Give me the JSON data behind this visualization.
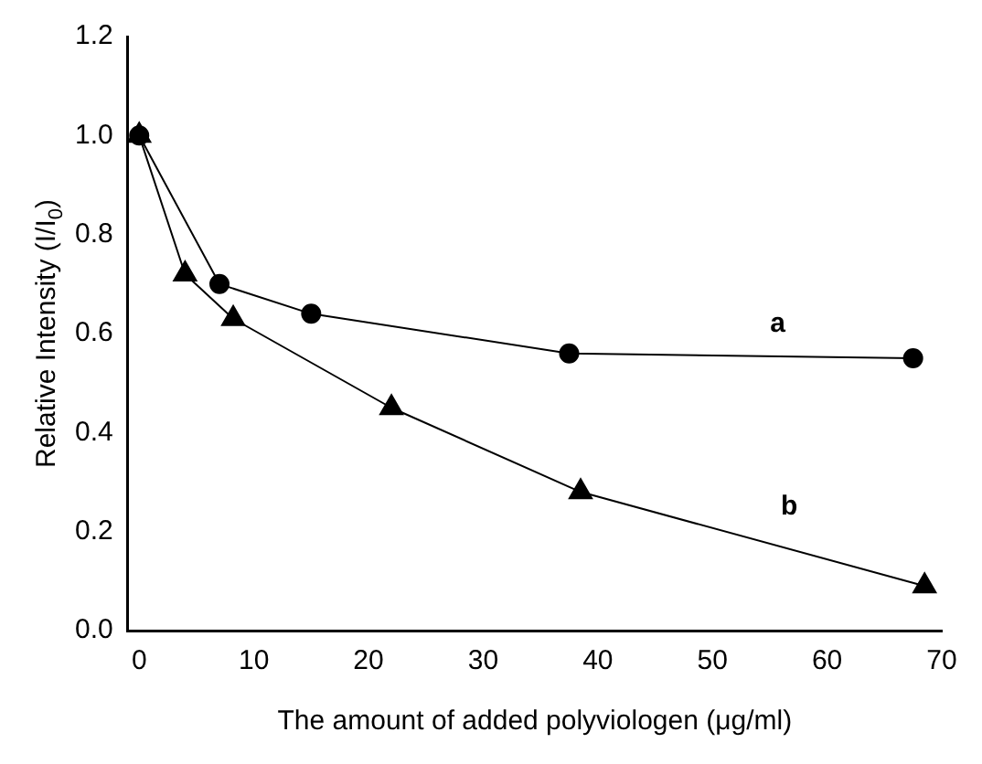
{
  "chart_data": {
    "type": "line",
    "xlabel": "The amount of added polyviologen (μg/ml)",
    "ylabel": "Relative Intensity (I/I$_{0}$)",
    "xlim": [
      -1,
      70
    ],
    "xticks": [
      0,
      10,
      20,
      30,
      40,
      50,
      60,
      70
    ],
    "ylim": [
      0,
      1.2
    ],
    "yticks": [
      {
        "value": 0,
        "label": "0.0"
      },
      {
        "value": 0.2,
        "label": "0.2"
      },
      {
        "value": 0.4,
        "label": "0.4"
      },
      {
        "value": 0.6,
        "label": "0.6"
      },
      {
        "value": 0.8,
        "label": "0.8"
      },
      {
        "value": 1,
        "label": "1.0"
      },
      {
        "value": 1.2,
        "label": "1.2"
      }
    ],
    "grid": false,
    "legend": false,
    "series": [
      {
        "name": "a",
        "color": "#000000",
        "marker": "circle",
        "x": [
          0,
          7,
          15,
          37.5,
          67.5
        ],
        "values": [
          1.0,
          0.7,
          0.64,
          0.56,
          0.55
        ]
      },
      {
        "name": "b",
        "color": "#000000",
        "marker": "triangle",
        "x": [
          0,
          4,
          8.2,
          22,
          38.5,
          68.5
        ],
        "values": [
          1.0,
          0.72,
          0.63,
          0.45,
          0.28,
          0.09
        ]
      }
    ]
  }
}
